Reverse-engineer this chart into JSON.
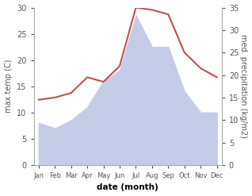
{
  "months": [
    "Jan",
    "Feb",
    "Mar",
    "Apr",
    "May",
    "Jun",
    "Jul",
    "Aug",
    "Sep",
    "Oct",
    "Nov",
    "Dec"
  ],
  "max_temp": [
    8.0,
    7.0,
    8.5,
    11.0,
    16.0,
    18.0,
    28.5,
    22.5,
    22.5,
    14.0,
    10.0,
    10.0
  ],
  "precipitation": [
    14.5,
    15.0,
    16.0,
    19.5,
    18.5,
    22.0,
    35.0,
    34.5,
    33.5,
    25.0,
    21.5,
    19.5
  ],
  "temp_color": "#c0504d",
  "precip_fill_color": "#c5cce8",
  "temp_ylim": [
    0,
    30
  ],
  "precip_ylim": [
    0,
    35
  ],
  "temp_yticks": [
    0,
    5,
    10,
    15,
    20,
    25,
    30
  ],
  "precip_yticks": [
    0,
    5,
    10,
    15,
    20,
    25,
    30,
    35
  ],
  "ylabel_left": "max temp (C)",
  "ylabel_right": "med. precipitation (kg/m2)",
  "xlabel": "date (month)",
  "bg_color": "#ffffff",
  "spine_color": "#aaaaaa",
  "tick_color": "#555555"
}
